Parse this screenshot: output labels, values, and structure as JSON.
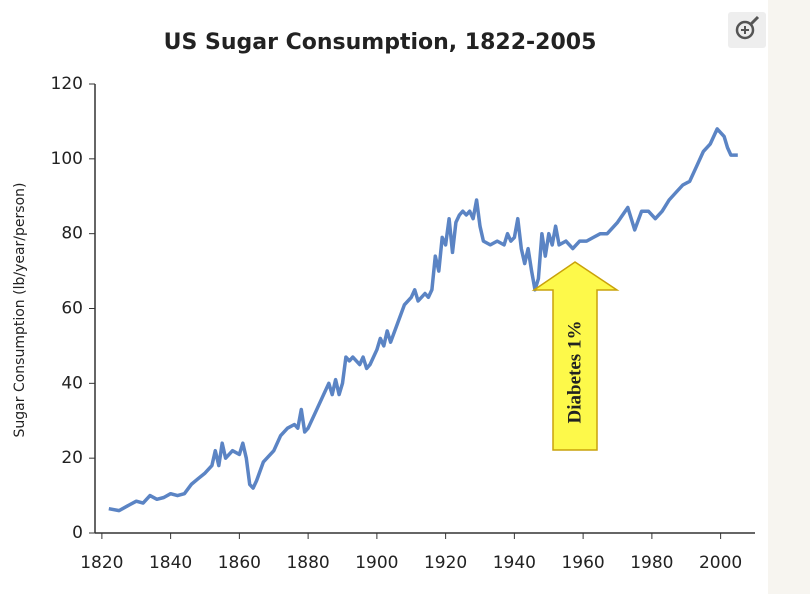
{
  "chart_data": {
    "type": "line",
    "title": "US Sugar Consumption, 1822-2005",
    "y_label": "Sugar Consumption (lb/year/person)",
    "annotation": "Diabetes 1%",
    "x": [
      1822,
      1825,
      1828,
      1830,
      1832,
      1834,
      1836,
      1838,
      1840,
      1842,
      1844,
      1846,
      1848,
      1850,
      1852,
      1853,
      1854,
      1855,
      1856,
      1858,
      1860,
      1861,
      1862,
      1863,
      1864,
      1865,
      1867,
      1870,
      1872,
      1874,
      1876,
      1877,
      1878,
      1879,
      1880,
      1882,
      1884,
      1886,
      1887,
      1888,
      1889,
      1890,
      1891,
      1892,
      1893,
      1895,
      1896,
      1897,
      1898,
      1900,
      1901,
      1902,
      1903,
      1904,
      1906,
      1908,
      1910,
      1911,
      1912,
      1914,
      1915,
      1916,
      1917,
      1918,
      1919,
      1920,
      1921,
      1922,
      1923,
      1924,
      1925,
      1926,
      1927,
      1928,
      1929,
      1930,
      1931,
      1933,
      1935,
      1937,
      1938,
      1939,
      1940,
      1941,
      1942,
      1943,
      1944,
      1945,
      1946,
      1947,
      1948,
      1949,
      1950,
      1951,
      1952,
      1953,
      1955,
      1957,
      1959,
      1961,
      1963,
      1965,
      1967,
      1970,
      1973,
      1975,
      1977,
      1979,
      1981,
      1983,
      1985,
      1987,
      1989,
      1991,
      1993,
      1995,
      1997,
      1999,
      2001,
      2002,
      2003,
      2005
    ],
    "series": [
      {
        "name": "Sugar consumption",
        "color": "#5b84c4",
        "values": [
          6.5,
          6,
          7.5,
          8.5,
          8,
          10,
          9,
          9.5,
          10.5,
          10,
          10.5,
          13,
          14.5,
          16,
          18,
          22,
          18,
          24,
          20,
          22,
          21,
          24,
          20,
          13,
          12,
          14,
          19,
          22,
          26,
          28,
          29,
          28,
          33,
          27,
          28,
          32,
          36,
          40,
          37,
          41,
          37,
          40,
          47,
          46,
          47,
          45,
          47,
          44,
          45,
          49,
          52,
          50,
          54,
          51,
          56,
          61,
          63,
          65,
          62,
          64,
          63,
          65,
          74,
          70,
          79,
          77,
          84,
          75,
          83,
          85,
          86,
          85,
          86,
          84,
          89,
          82,
          78,
          77,
          78,
          77,
          80,
          78,
          79,
          84,
          76,
          72,
          76,
          70,
          65,
          68,
          80,
          74,
          80,
          77,
          82,
          77,
          78,
          76,
          78,
          78,
          79,
          80,
          80,
          83,
          87,
          81,
          86,
          86,
          84,
          86,
          89,
          91,
          93,
          94,
          98,
          102,
          104,
          108,
          106,
          103,
          101,
          101
        ]
      }
    ],
    "xlim": [
      1818,
      2010
    ],
    "xticks": [
      1820,
      1840,
      1860,
      1880,
      1900,
      1920,
      1940,
      1960,
      1980,
      2000
    ],
    "ylim": [
      0,
      120
    ],
    "yticks": [
      0,
      20,
      40,
      60,
      80,
      100,
      120
    ]
  }
}
